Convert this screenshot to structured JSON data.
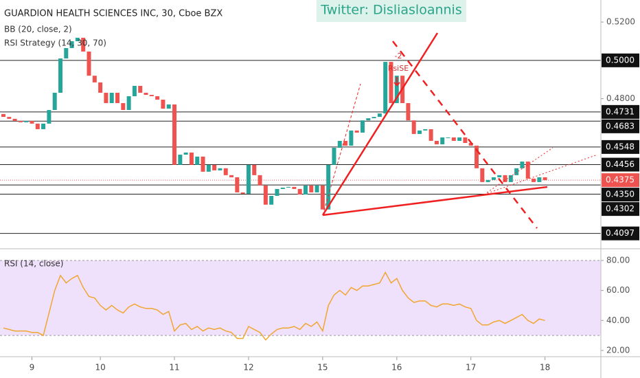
{
  "chart_data": [
    {
      "type": "candlestick",
      "title": "GUARDION HEALTH SCIENCES INC, 30, Cboe BZX",
      "indicators": [
        "BB (20, close, 2)",
        "RSI Strategy (14, 30, 70)"
      ],
      "watermark": "Twitter: Disliasloannis",
      "annotations": [
        "-2",
        "RsiSE"
      ],
      "up_color": "#26a69a",
      "down_color": "#ef5350",
      "open": [
        0.472,
        0.4705,
        0.4695,
        0.4684,
        0.4677,
        0.4684,
        0.467,
        0.4641,
        0.467,
        0.4741,
        0.4831,
        0.501,
        0.5064,
        0.51,
        0.5118,
        0.5046,
        0.492,
        0.4885,
        0.4831,
        0.4777,
        0.4831,
        0.4777,
        0.4741,
        0.4813,
        0.4867,
        0.4831,
        0.482,
        0.4813,
        0.4795,
        0.4748,
        0.477,
        0.4455,
        0.4508,
        0.4519,
        0.4455,
        0.4498,
        0.4419,
        0.4455,
        0.4426,
        0.4437,
        0.4401,
        0.439,
        0.4311,
        0.4304,
        0.4455,
        0.4401,
        0.4347,
        0.4247,
        0.4293,
        0.4329,
        0.4336,
        0.434,
        0.4329,
        0.43,
        0.4347,
        0.4311,
        0.4347,
        0.4222,
        0.4455,
        0.4544,
        0.458,
        0.4555,
        0.4634,
        0.4623,
        0.4687,
        0.4698,
        0.4705,
        0.4723,
        0.4992,
        0.4777,
        0.492,
        0.4777,
        0.4687,
        0.4616,
        0.4634,
        0.4641,
        0.458,
        0.4562,
        0.4598,
        0.4598,
        0.458,
        0.4598,
        0.4569,
        0.4555,
        0.4437,
        0.4365,
        0.4376,
        0.439,
        0.4401,
        0.4365,
        0.4401,
        0.4437,
        0.4472,
        0.4383,
        0.4365,
        0.439
      ],
      "close": [
        0.4705,
        0.4695,
        0.4684,
        0.4677,
        0.4684,
        0.467,
        0.4641,
        0.467,
        0.4741,
        0.4831,
        0.501,
        0.5064,
        0.51,
        0.5118,
        0.5046,
        0.492,
        0.4885,
        0.4831,
        0.4777,
        0.4831,
        0.4777,
        0.4741,
        0.4813,
        0.4867,
        0.4831,
        0.482,
        0.4813,
        0.4795,
        0.4748,
        0.477,
        0.4455,
        0.4508,
        0.4519,
        0.4455,
        0.4498,
        0.4419,
        0.4455,
        0.4426,
        0.4437,
        0.4401,
        0.439,
        0.4311,
        0.4304,
        0.4455,
        0.4401,
        0.4347,
        0.4247,
        0.4293,
        0.4329,
        0.4336,
        0.434,
        0.4329,
        0.43,
        0.4347,
        0.4311,
        0.4347,
        0.4222,
        0.4455,
        0.4544,
        0.458,
        0.4555,
        0.4634,
        0.4623,
        0.4687,
        0.4698,
        0.4705,
        0.4723,
        0.4992,
        0.4777,
        0.492,
        0.4777,
        0.4687,
        0.4616,
        0.4634,
        0.4641,
        0.458,
        0.4562,
        0.4598,
        0.4598,
        0.458,
        0.4598,
        0.4569,
        0.4555,
        0.4437,
        0.4365,
        0.4376,
        0.439,
        0.4401,
        0.4365,
        0.4401,
        0.4437,
        0.4472,
        0.4383,
        0.4365,
        0.439,
        0.4375
      ],
      "xlim": [
        -0.6,
        104.8
      ],
      "xticks": [
        {
          "value": 5,
          "label": "9"
        },
        {
          "value": 17,
          "label": "10"
        },
        {
          "value": 30,
          "label": "11"
        },
        {
          "value": 43,
          "label": "12"
        },
        {
          "value": 56,
          "label": "15"
        },
        {
          "value": 69,
          "label": "16"
        },
        {
          "value": 82,
          "label": "17"
        },
        {
          "value": 95,
          "label": "18"
        }
      ],
      "ylim": [
        0.4024,
        0.5315
      ],
      "yticks": [
        {
          "value": 0.52,
          "label": "0.5200"
        },
        {
          "value": 0.48,
          "label": "0.4800"
        }
      ],
      "levels": [
        {
          "value": 0.5,
          "label": "0.5000"
        },
        {
          "value": 0.4731,
          "label": "0.4731"
        },
        {
          "value": 0.4683,
          "label": "0.4683"
        },
        {
          "value": 0.4548,
          "label": "0.4548"
        },
        {
          "value": 0.4456,
          "label": "0.4456"
        },
        {
          "value": 0.435,
          "label": "0.4350"
        },
        {
          "value": 0.4302,
          "label": "0.4302"
        },
        {
          "value": 0.4097,
          "label": "0.4097"
        }
      ],
      "last_price": {
        "value": 0.4375,
        "label": "0.4375",
        "color": "#ef5350"
      }
    },
    {
      "type": "line",
      "title": "RSI (14, close)",
      "color": "#f0a630",
      "band": [
        30,
        80
      ],
      "band_color": "#efe0fb",
      "values": [
        35,
        34,
        33,
        33,
        33,
        32,
        32,
        30,
        45,
        60,
        70,
        65,
        68,
        70,
        62,
        56,
        55,
        50,
        47,
        50,
        47,
        45,
        49,
        51,
        49,
        48,
        48,
        47,
        44,
        46,
        33,
        37,
        38,
        34,
        36,
        33,
        35,
        34,
        35,
        33,
        32,
        28,
        28,
        36,
        34,
        32,
        27,
        31,
        34,
        35,
        35,
        36,
        34,
        38,
        36,
        39,
        33,
        50,
        57,
        60,
        57,
        62,
        60,
        63,
        63,
        64,
        65,
        72,
        65,
        68,
        60,
        55,
        52,
        53,
        53,
        50,
        49,
        51,
        51,
        50,
        51,
        49,
        48,
        40,
        37,
        37,
        39,
        40,
        38,
        40,
        42,
        44,
        40,
        38,
        41,
        40
      ],
      "ylim": [
        16.3,
        86.4
      ],
      "yticks": [
        {
          "value": 80,
          "label": "80.00"
        },
        {
          "value": 60,
          "label": "60.00"
        },
        {
          "value": 40,
          "label": "40.00"
        },
        {
          "value": 20,
          "label": "20.00"
        }
      ]
    }
  ]
}
